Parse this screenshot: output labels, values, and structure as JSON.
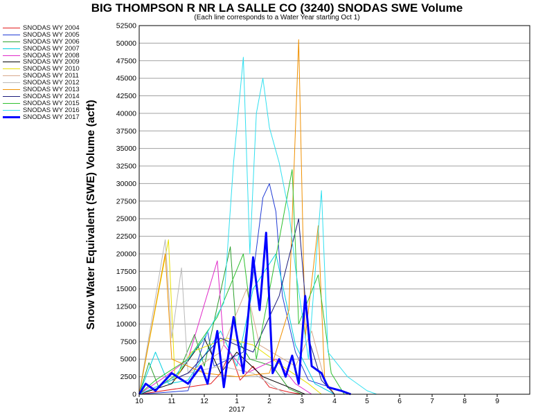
{
  "chart_data": {
    "type": "line",
    "title": "BIG THOMPSON R NR LA SALLE CO (3240) SNODAS SWE Volume",
    "subtitle": "(Each line corresponds to a Water Year starting Oct 1)",
    "ylabel": "Snow Water Equivalent (SWE) Volume (acft)",
    "xlabel": "",
    "year_label": "2017",
    "ylim": [
      0,
      52500
    ],
    "y_ticks": [
      "0",
      "2500",
      "5000",
      "7500",
      "10000",
      "12500",
      "15000",
      "17500",
      "20000",
      "22500",
      "25000",
      "27500",
      "30000",
      "32500",
      "35000",
      "37500",
      "40000",
      "42500",
      "45000",
      "47500",
      "50000",
      "52500"
    ],
    "x_ticks": [
      "10",
      "11",
      "12",
      "1",
      "2",
      "3",
      "4",
      "5",
      "6",
      "7",
      "8",
      "9"
    ],
    "grid": true,
    "legend_position": "left",
    "series": [
      {
        "name": "SNODAS WY 2004",
        "color": "#e31a1c",
        "points": [
          [
            0,
            0
          ],
          [
            2.2,
            1500
          ],
          [
            2.5,
            3000
          ],
          [
            2.8,
            6000
          ],
          [
            3.1,
            2000
          ],
          [
            3.5,
            4000
          ],
          [
            4.0,
            1000
          ],
          [
            4.6,
            300
          ],
          [
            5.0,
            0
          ]
        ]
      },
      {
        "name": "SNODAS WY 2005",
        "color": "#1f3bd6",
        "points": [
          [
            0,
            0
          ],
          [
            1.5,
            500
          ],
          [
            2.1,
            9000
          ],
          [
            2.3,
            4000
          ],
          [
            3.2,
            6000
          ],
          [
            3.8,
            28000
          ],
          [
            4.0,
            30000
          ],
          [
            4.2,
            26000
          ],
          [
            4.4,
            14000
          ],
          [
            4.8,
            6000
          ],
          [
            5.2,
            2000
          ],
          [
            6.0,
            800
          ],
          [
            6.5,
            0
          ]
        ]
      },
      {
        "name": "SNODAS WY 2006",
        "color": "#2ca02c",
        "points": [
          [
            0,
            0
          ],
          [
            0.3,
            4500
          ],
          [
            0.6,
            1000
          ],
          [
            1.2,
            3000
          ],
          [
            1.7,
            8500
          ],
          [
            2.0,
            4000
          ],
          [
            2.8,
            21000
          ],
          [
            3.0,
            8000
          ],
          [
            3.4,
            5000
          ],
          [
            4.1,
            4000
          ],
          [
            4.6,
            800
          ],
          [
            5.0,
            0
          ]
        ]
      },
      {
        "name": "SNODAS WY 2007",
        "color": "#00d0e0",
        "points": [
          [
            0,
            0
          ],
          [
            0.5,
            6000
          ],
          [
            0.9,
            1500
          ],
          [
            1.5,
            2000
          ],
          [
            2.5,
            9000
          ],
          [
            3.0,
            4000
          ],
          [
            3.5,
            15000
          ],
          [
            4.2,
            20000
          ],
          [
            4.8,
            7000
          ],
          [
            5.4,
            1500
          ],
          [
            6.0,
            0
          ]
        ]
      },
      {
        "name": "SNODAS WY 2008",
        "color": "#e028c8",
        "points": [
          [
            0,
            0
          ],
          [
            0.8,
            2500
          ],
          [
            1.5,
            5000
          ],
          [
            2.4,
            19000
          ],
          [
            2.6,
            7000
          ],
          [
            3.3,
            3000
          ],
          [
            4.2,
            5000
          ],
          [
            4.8,
            1500
          ],
          [
            5.3,
            0
          ]
        ]
      },
      {
        "name": "SNODAS WY 2009",
        "color": "#000000",
        "points": [
          [
            0,
            0
          ],
          [
            1.0,
            1500
          ],
          [
            2.0,
            8000
          ],
          [
            2.5,
            3000
          ],
          [
            3.0,
            6000
          ],
          [
            3.8,
            2500
          ],
          [
            4.6,
            1000
          ],
          [
            5.1,
            0
          ]
        ]
      },
      {
        "name": "SNODAS WY 2010",
        "color": "#e8e000",
        "points": [
          [
            0,
            0
          ],
          [
            0.9,
            22000
          ],
          [
            1.1,
            2000
          ],
          [
            1.6,
            6000
          ],
          [
            2.7,
            8000
          ],
          [
            3.5,
            7000
          ],
          [
            4.4,
            4000
          ],
          [
            5.2,
            1500
          ],
          [
            5.6,
            0
          ]
        ]
      },
      {
        "name": "SNODAS WY 2011",
        "color": "#d7a88c",
        "points": [
          [
            0,
            0
          ],
          [
            1.5,
            3000
          ],
          [
            2.5,
            6000
          ],
          [
            3.3,
            15000
          ],
          [
            3.7,
            7000
          ],
          [
            4.8,
            4000
          ],
          [
            5.3,
            9000
          ],
          [
            5.7,
            2000
          ],
          [
            6.0,
            0
          ]
        ]
      },
      {
        "name": "SNODAS WY 2012",
        "color": "#b8b8b8",
        "points": [
          [
            0,
            0
          ],
          [
            0.8,
            22000
          ],
          [
            1.0,
            8000
          ],
          [
            1.3,
            18000
          ],
          [
            1.5,
            3000
          ],
          [
            2.5,
            4000
          ],
          [
            3.5,
            3000
          ],
          [
            4.0,
            1500
          ],
          [
            4.5,
            0
          ]
        ]
      },
      {
        "name": "SNODAS WY 2013",
        "color": "#f09000",
        "points": [
          [
            0,
            0
          ],
          [
            0.8,
            20000
          ],
          [
            1.0,
            5000
          ],
          [
            2.0,
            3000
          ],
          [
            3.0,
            2500
          ],
          [
            4.0,
            3000
          ],
          [
            4.6,
            12000
          ],
          [
            4.9,
            50500
          ],
          [
            5.1,
            8000
          ],
          [
            5.5,
            24000
          ],
          [
            5.7,
            2000
          ],
          [
            6.0,
            0
          ]
        ]
      },
      {
        "name": "SNODAS WY 2014",
        "color": "#1a1a7a",
        "points": [
          [
            0,
            0
          ],
          [
            1.5,
            3000
          ],
          [
            2.5,
            8000
          ],
          [
            3.5,
            6000
          ],
          [
            4.3,
            14000
          ],
          [
            4.9,
            25000
          ],
          [
            5.2,
            8000
          ],
          [
            5.6,
            2000
          ],
          [
            6.0,
            0
          ]
        ]
      },
      {
        "name": "SNODAS WY 2015",
        "color": "#2ec02e",
        "points": [
          [
            0,
            0
          ],
          [
            0.5,
            2000
          ],
          [
            1.5,
            5000
          ],
          [
            2.4,
            11000
          ],
          [
            3.2,
            20000
          ],
          [
            3.6,
            5000
          ],
          [
            4.3,
            22000
          ],
          [
            4.7,
            32000
          ],
          [
            4.9,
            10000
          ],
          [
            5.5,
            17000
          ],
          [
            5.9,
            3000
          ],
          [
            6.3,
            0
          ]
        ]
      },
      {
        "name": "SNODAS WY 2016",
        "color": "#30e0f0",
        "points": [
          [
            0,
            0
          ],
          [
            1.0,
            2000
          ],
          [
            2.0,
            8000
          ],
          [
            2.6,
            13000
          ],
          [
            2.9,
            33000
          ],
          [
            3.2,
            48000
          ],
          [
            3.4,
            20000
          ],
          [
            3.6,
            40000
          ],
          [
            3.8,
            45000
          ],
          [
            4.0,
            38000
          ],
          [
            4.3,
            33000
          ],
          [
            4.6,
            26000
          ],
          [
            4.8,
            18000
          ],
          [
            5.2,
            5000
          ],
          [
            5.6,
            29000
          ],
          [
            5.8,
            6000
          ],
          [
            6.4,
            2500
          ],
          [
            7.0,
            500
          ],
          [
            7.3,
            0
          ]
        ]
      },
      {
        "name": "SNODAS WY 2017",
        "color": "#0000ff",
        "bold": true,
        "points": [
          [
            0,
            0
          ],
          [
            0.2,
            1500
          ],
          [
            0.5,
            500
          ],
          [
            1.0,
            3000
          ],
          [
            1.5,
            1500
          ],
          [
            1.9,
            4000
          ],
          [
            2.1,
            1500
          ],
          [
            2.4,
            9000
          ],
          [
            2.6,
            1000
          ],
          [
            2.9,
            11000
          ],
          [
            3.2,
            3000
          ],
          [
            3.5,
            19500
          ],
          [
            3.7,
            12000
          ],
          [
            3.9,
            23000
          ],
          [
            4.1,
            3000
          ],
          [
            4.3,
            5000
          ],
          [
            4.5,
            2500
          ],
          [
            4.7,
            5500
          ],
          [
            4.9,
            1500
          ],
          [
            5.1,
            14000
          ],
          [
            5.3,
            4000
          ],
          [
            5.6,
            3000
          ],
          [
            5.8,
            1000
          ],
          [
            6.2,
            500
          ],
          [
            6.5,
            0
          ]
        ]
      }
    ]
  }
}
